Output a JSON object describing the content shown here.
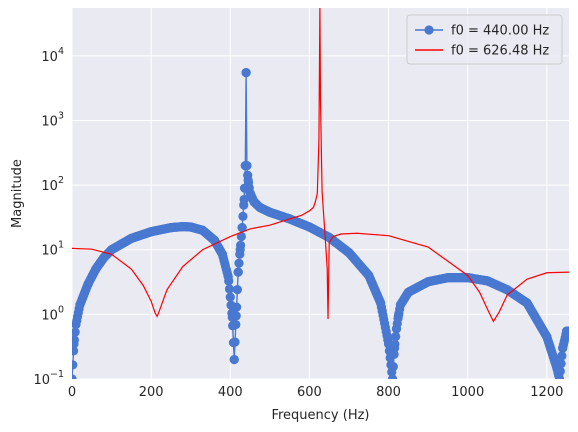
{
  "chart_data": {
    "type": "line",
    "title": "",
    "xlabel": "Frequency (Hz)",
    "ylabel": "Magnitude",
    "xlim": [
      0,
      1256
    ],
    "ylim_log10": [
      -1,
      4.74
    ],
    "yscale": "log",
    "grid": true,
    "legend_position": "top-right",
    "x_ticks": [
      0,
      200,
      400,
      600,
      800,
      1000,
      1200
    ],
    "x_tick_labels": [
      "0",
      "200",
      "400",
      "600",
      "800",
      "1000",
      "1200"
    ],
    "y_ticks": [
      -1,
      0,
      1,
      2,
      3,
      4
    ],
    "y_tick_labels": [
      {
        "base": "10",
        "exp": "−1"
      },
      {
        "base": "10",
        "exp": "0"
      },
      {
        "base": "10",
        "exp": "1"
      },
      {
        "base": "10",
        "exp": "2"
      },
      {
        "base": "10",
        "exp": "3"
      },
      {
        "base": "10",
        "exp": "4"
      }
    ],
    "series": [
      {
        "name": "f0 = 440.00 Hz",
        "color": "#4878d0",
        "marker": "circle",
        "x": [
          0,
          5,
          10,
          20,
          40,
          60,
          80,
          100,
          150,
          200,
          250,
          280,
          300,
          330,
          360,
          380,
          395,
          405,
          410,
          415,
          420,
          425,
          430,
          435,
          438,
          440,
          442,
          445,
          450,
          460,
          475,
          500,
          550,
          600,
          650,
          700,
          750,
          780,
          800,
          810,
          815,
          820,
          825,
          830,
          850,
          900,
          950,
          1000,
          1050,
          1100,
          1150,
          1200,
          1225,
          1232,
          1240,
          1250,
          1256
        ],
        "y": [
          0.1,
          0.35,
          0.7,
          1.4,
          2.9,
          5.0,
          7.5,
          10,
          15,
          19,
          22,
          22.8,
          22.5,
          20,
          14,
          8.5,
          3.8,
          0.9,
          0.2,
          0.95,
          4.5,
          10,
          22,
          60,
          200,
          5500,
          200,
          120,
          75,
          55,
          45,
          38,
          30,
          22.5,
          15.5,
          9,
          4,
          1.5,
          0.35,
          0.1,
          0.3,
          0.6,
          0.95,
          1.4,
          2.2,
          3.2,
          3.7,
          3.7,
          3.3,
          2.4,
          1.5,
          0.45,
          0.15,
          0.1,
          0.3,
          0.55,
          0.55
        ]
      },
      {
        "name": "f0 = 626.48 Hz",
        "color": "#ff0000",
        "marker": "none",
        "x": [
          0,
          50,
          100,
          150,
          180,
          200,
          210,
          215,
          220,
          240,
          280,
          330,
          400,
          450,
          500,
          550,
          580,
          600,
          610,
          615,
          620,
          624,
          626.48,
          628,
          632,
          640,
          645,
          647,
          650,
          660,
          680,
          720,
          800,
          900,
          1000,
          1030,
          1050,
          1065,
          1080,
          1100,
          1150,
          1200,
          1256
        ],
        "y": [
          10.5,
          10.2,
          8.5,
          5.0,
          2.8,
          1.6,
          1.05,
          0.93,
          1.1,
          2.4,
          5.5,
          10,
          16,
          21,
          24,
          30,
          34,
          40,
          45,
          55,
          75,
          500,
          60000,
          2000,
          80,
          15,
          5,
          0.85,
          13,
          16,
          17.5,
          18,
          16.5,
          11,
          4.0,
          2.2,
          1.2,
          0.78,
          1.1,
          2.0,
          3.5,
          4.4,
          4.5
        ]
      }
    ]
  }
}
